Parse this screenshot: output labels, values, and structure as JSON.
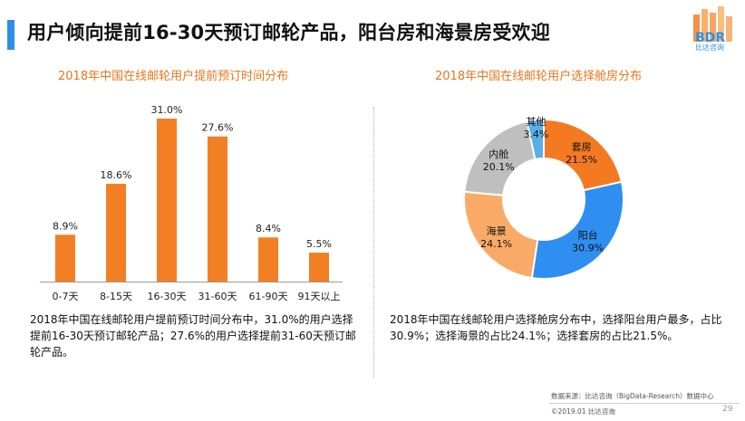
{
  "header": {
    "title": "用户倾向提前16-30天预订邮轮产品，阳台房和海景房受欢迎",
    "logo_text": "BDR",
    "logo_subtext": "比达咨询"
  },
  "colors": {
    "accent_blue": "#2f8ee8",
    "bar_orange": "#f37f24",
    "title_orange": "#e8761e",
    "slice_orange": "#f47a22",
    "slice_blue": "#2f8ff0",
    "slice_peach": "#f9aa66",
    "slice_gray": "#bfbfbf",
    "slice_lightblue": "#5aaee8"
  },
  "chart_data": [
    {
      "type": "bar",
      "title": "2018年中国在线邮轮用户提前预订时间分布",
      "categories": [
        "0-7天",
        "8-15天",
        "16-30天",
        "31-60天",
        "61-90天",
        "91天以上"
      ],
      "values": [
        8.9,
        18.6,
        31.0,
        27.6,
        8.4,
        5.5
      ],
      "value_labels": [
        "8.9%",
        "18.6%",
        "31.0%",
        "27.6%",
        "8.4%",
        "5.5%"
      ],
      "unit": "%",
      "ylim": [
        0,
        31.0
      ],
      "grid": false,
      "legend": "none"
    },
    {
      "type": "pie",
      "subtype": "donut",
      "title": "2018年中国在线邮轮用户选择舱房分布",
      "labels": [
        "套房",
        "阳台",
        "海景",
        "内舱",
        "其他"
      ],
      "values": [
        21.5,
        30.9,
        24.1,
        20.1,
        3.4
      ],
      "value_labels": [
        "21.5%",
        "30.9%",
        "24.1%",
        "20.1%",
        "3.4%"
      ],
      "colors": [
        "#f47a22",
        "#2f8ff0",
        "#f9aa66",
        "#bfbfbf",
        "#5aaee8"
      ],
      "legend": "none"
    }
  ],
  "bar_description": "2018年中国在线邮轮用户提前预订时间分布中，31.0%的用户选择提前16-30天预订邮轮产品；27.6%的用户选择提前31-60天预订邮轮产品。",
  "pie_description": "2018年中国在线邮轮用户选择舱房分布中，选择阳台用户最多，占比30.9%；选择海景的占比24.1%；选择套房的占比21.5%。",
  "footer": {
    "source": "数据来源：比达咨询（BigData-Research）数据中心",
    "copyright": "©2019.01  比达咨询",
    "page": "29"
  }
}
